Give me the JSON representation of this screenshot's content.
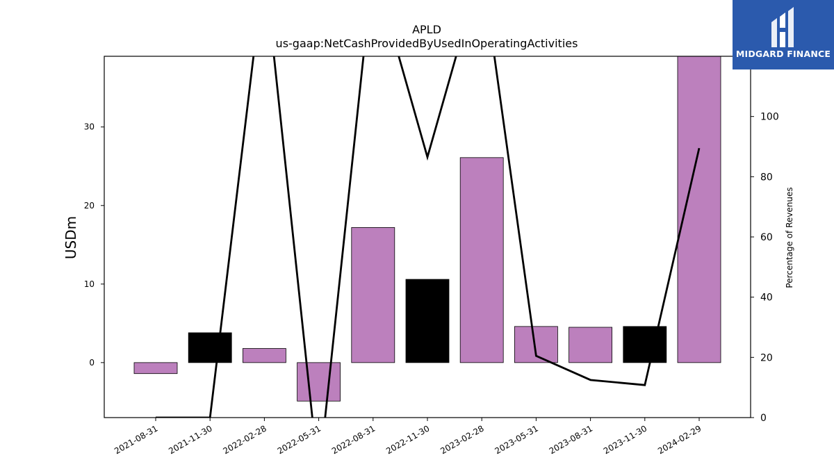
{
  "brand": {
    "name": "MIDGARD FINANCE",
    "bg_color": "#2b5aad"
  },
  "colors": {
    "bar_positive": "#bc80bd",
    "bar_highlight": "#000000",
    "line": "#000000"
  },
  "chart_data": {
    "type": "bar",
    "title": "APLD",
    "subtitle": "us-gaap:NetCashProvidedByUsedInOperatingActivities",
    "ylabel": "USDm",
    "y2label": "Percentage of Revenues",
    "categories": [
      "2021-08-31",
      "2021-11-30",
      "2022-02-28",
      "2022-05-31",
      "2022-08-31",
      "2022-11-30",
      "2023-02-28",
      "2023-05-31",
      "2023-08-31",
      "2023-11-30",
      "2024-02-29"
    ],
    "series": [
      {
        "type": "bar",
        "values": [
          -1.4,
          3.8,
          1.8,
          -4.9,
          17.2,
          10.6,
          26.1,
          4.6,
          4.5,
          4.6,
          39.0
        ],
        "colors": [
          "#bc80bd",
          "#000000",
          "#bc80bd",
          "#bc80bd",
          "#bc80bd",
          "#000000",
          "#bc80bd",
          "#bc80bd",
          "#bc80bd",
          "#000000",
          "#bc80bd"
        ]
      },
      {
        "type": "line",
        "axis": "right",
        "values": [
          0.0,
          0.0,
          150.0,
          -20.0,
          150.0,
          86.5,
          150.0,
          20.5,
          12.5,
          10.8,
          89.5
        ]
      }
    ],
    "ylim": [
      -7,
      39
    ],
    "y_ticks": [
      0,
      10,
      20,
      30
    ],
    "y2lim": [
      0,
      120
    ],
    "y2_ticks": [
      0,
      20,
      40,
      60,
      80,
      100
    ],
    "grid": false,
    "legend": "none"
  }
}
